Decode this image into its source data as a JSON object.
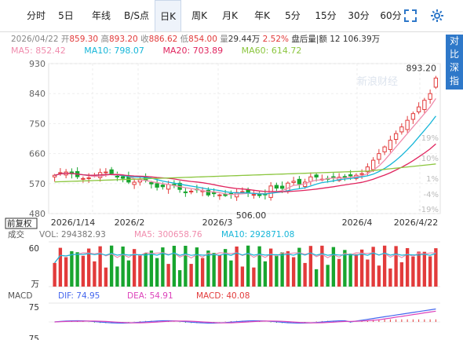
{
  "tabs": [
    "分时",
    "5日",
    "年线",
    "B/S点",
    "日K",
    "周K",
    "月K",
    "年K",
    "5分",
    "15分",
    "30分",
    "60分"
  ],
  "active_tab": "日K",
  "icons": {
    "fullscreen": "fullscreen-icon",
    "settings": "settings-icon"
  },
  "info": {
    "date": "2026/04/22",
    "open_label": "开",
    "open": "859.30",
    "high_label": "高",
    "high": "893.20",
    "close_label": "收",
    "close": "886.62",
    "low_label": "低",
    "low": "854.00",
    "volume_label": "量",
    "volume": "29.44万",
    "change": "2.52%",
    "after_hours": "盘后量|额 12 106.39万"
  },
  "side_panel": "对比深指",
  "ma": {
    "ma5": "MA5: 852.42",
    "ma10": "MA10: 798.07",
    "ma20": "MA20: 703.89",
    "ma60": "MA60: 614.72"
  },
  "colors": {
    "up": "#e23b3b",
    "down": "#18a52f",
    "ma5": "#f08cad",
    "ma10": "#16b6d8",
    "ma20": "#e0245e",
    "ma60": "#8cc63f",
    "dif": "#4466ee",
    "dea": "#dd44bb",
    "accent": "#2e78c9"
  },
  "price_axis": {
    "ticks": [
      "930",
      "840",
      "750",
      "660",
      "570",
      "480"
    ],
    "right_ticks": [
      "19%",
      "10%",
      "1%",
      "-4%",
      "-19%"
    ],
    "max_label": "893.20",
    "min_label": "506.00",
    "watermark": "新浪财经"
  },
  "date_labels": [
    "2026/1/14",
    "2026/2",
    "2026/3",
    "2026/4",
    "2026/4/22"
  ],
  "fq_label": "前复权",
  "volume_panel": {
    "title": "成交",
    "vol": "VOL: 294382.93",
    "ma5": "MA5: 300658.76",
    "ma10": "MA10: 292871.08",
    "axis_top": "60",
    "unit": "万"
  },
  "macd_panel": {
    "title": "MACD",
    "dif": "DIF: 74.95",
    "dea": "DEA: 54.91",
    "macd": "MACD: 40.08",
    "axis_top": "75",
    "axis_bottom": "75"
  },
  "chart_data": {
    "type": "candlestick",
    "period": "daily",
    "date_range": [
      "2026/1/14",
      "2026/4/22"
    ],
    "ylim": [
      480,
      930
    ],
    "last_bar": {
      "open": 859.3,
      "high": 893.2,
      "low": 854.0,
      "close": 886.62
    },
    "period_high": 893.2,
    "period_low": 506.0
  }
}
